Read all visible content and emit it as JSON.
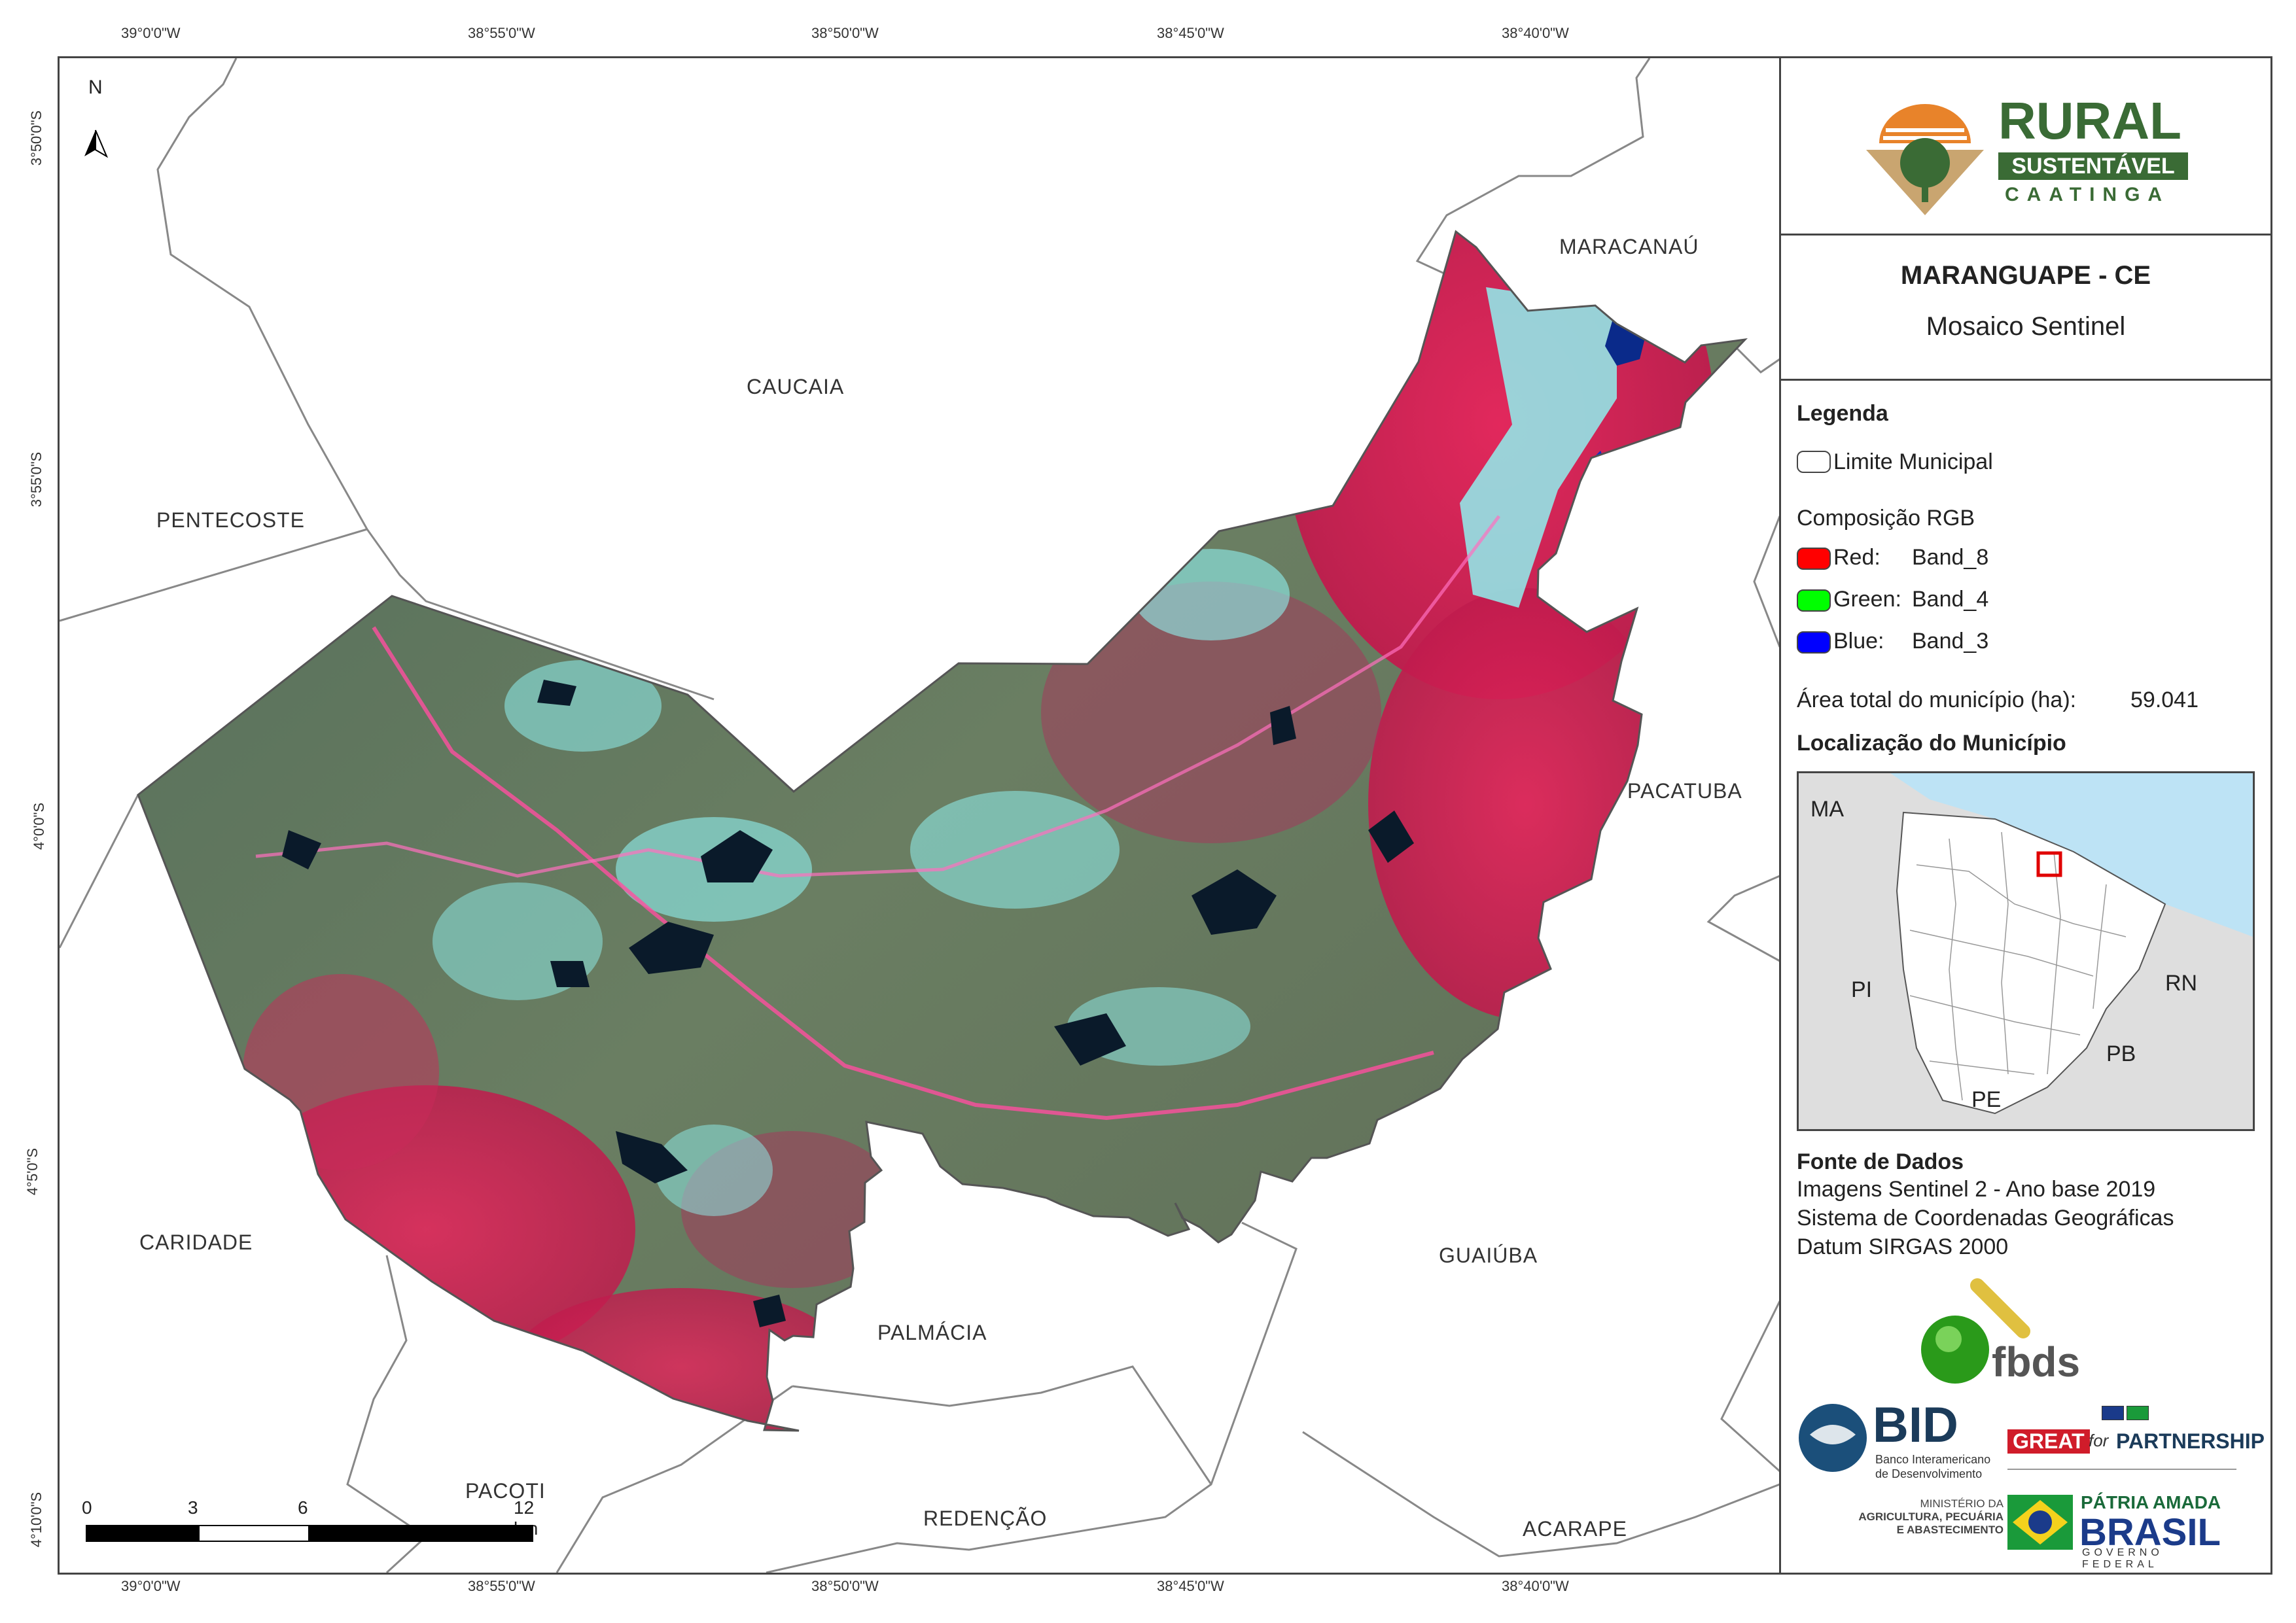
{
  "coords": {
    "top": [
      "39°0'0\"W",
      "38°55'0\"W",
      "38°50'0\"W",
      "38°45'0\"W",
      "38°40'0\"W"
    ],
    "bottom": [
      "39°0'0\"W",
      "38°55'0\"W",
      "38°50'0\"W",
      "38°45'0\"W",
      "38°40'0\"W"
    ],
    "left": [
      "3°50'0\"S",
      "3°55'0\"S",
      "4°0'0\"S",
      "4°5'0\"S",
      "4°10'0\"S"
    ]
  },
  "north_arrow": "N",
  "municipalities": {
    "maracanau": "MARACANAÚ",
    "caucaia": "CAUCAIA",
    "pentecoste": "PENTECOSTE",
    "pacatuba": "PACATUBA",
    "caridade": "CARIDADE",
    "guaiuba": "GUAIÚBA",
    "palmacia": "PALMÁCIA",
    "pacoti": "PACOTI",
    "redencao": "REDENÇÃO",
    "acarape": "ACARAPE"
  },
  "scale_bar": {
    "labels": [
      "0",
      "3",
      "6",
      "12 km"
    ]
  },
  "logo_rural": {
    "line1": "RURAL",
    "line2": "SUSTENTÁVEL",
    "line3": "CAATINGA"
  },
  "title": {
    "main": "MARANGUAPE - CE",
    "sub": "Mosaico Sentinel"
  },
  "legend": {
    "heading": "Legenda",
    "boundary_label": "Limite Municipal",
    "rgb_heading": "Composição RGB",
    "bands": [
      {
        "channel": "Red:",
        "band": "Band_8",
        "color": "#ff0000"
      },
      {
        "channel": "Green:",
        "band": "Band_4",
        "color": "#00ff00"
      },
      {
        "channel": "Blue:",
        "band": "Band_3",
        "color": "#0000ff"
      }
    ],
    "area_label": "Área total do município (ha):",
    "area_value": "59.041",
    "location_heading": "Localização do Município"
  },
  "inset": {
    "states": [
      "MA",
      "PI",
      "RN",
      "PB",
      "PE"
    ]
  },
  "sources": {
    "heading": "Fonte de Dados",
    "lines": [
      "Imagens Sentinel 2 - Ano base 2019",
      "Sistema de Coordenadas Geográficas",
      "Datum SIRGAS 2000"
    ]
  },
  "logos": {
    "fbds": "fbds",
    "bid": "BID",
    "bid_sub1": "Banco Interamericano",
    "bid_sub2": "de Desenvolvimento",
    "great": "GREAT",
    "great_for": "for",
    "great_partnership": "PARTNERSHIP",
    "ministry1": "MINISTÉRIO DA",
    "ministry2": "AGRICULTURA, PECUÁRIA",
    "ministry3": "E ABASTECIMENTO",
    "patria": "PÁTRIA AMADA",
    "brasil": "BRASIL",
    "governo": "GOVERNO FEDERAL"
  },
  "colors": {
    "vegetation": "#e8245c",
    "urban": "#8ff0ee",
    "mixed": "#5f7a62",
    "water": "#0a1a2a",
    "frame": "#444444",
    "sea": "#bde3f5",
    "rural_green": "#3a6b35"
  }
}
